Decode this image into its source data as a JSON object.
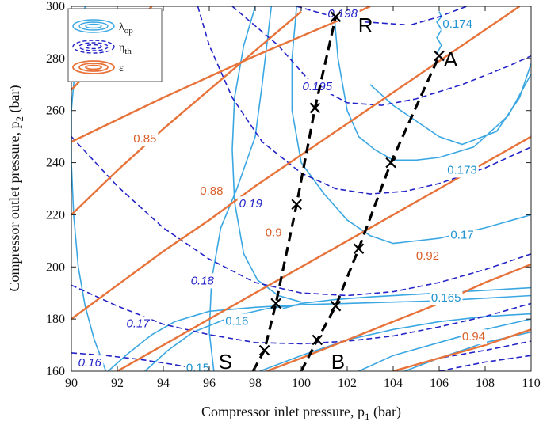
{
  "chart_data": {
    "type": "line",
    "title": "",
    "xlabel": "Compressor inlet pressure, p",
    "xlabel_sub": "1",
    "xlabel_unit": " (bar)",
    "ylabel": "Compressor outlet pressure, p",
    "ylabel_sub": "2",
    "ylabel_unit": " (bar)",
    "xlim": [
      90,
      110
    ],
    "ylim": [
      160,
      300
    ],
    "xticks": [
      "90",
      "92",
      "94",
      "96",
      "98",
      "100",
      "102",
      "104",
      "106",
      "108",
      "110"
    ],
    "yticks": [
      "160",
      "180",
      "200",
      "220",
      "240",
      "260",
      "280",
      "300"
    ],
    "grid": false,
    "legend_position": "top-left",
    "colors": {
      "lambda": "#3aa7e2",
      "eta": "#2323c8",
      "eps": "#e8733a",
      "path": "#000000"
    },
    "legend": [
      {
        "key": "lambda",
        "base": "λ",
        "sub": "op"
      },
      {
        "key": "eta",
        "base": "η",
        "sub": "th"
      },
      {
        "key": "eps",
        "base": "ε",
        "sub": ""
      }
    ],
    "series": [
      {
        "group": "lambda",
        "label": "0.15",
        "label_at": [
          95.5,
          161
        ],
        "points": [
          [
            91.6,
            160
          ],
          [
            92.5,
            167
          ],
          [
            93.5,
            174
          ],
          [
            94.5,
            179
          ],
          [
            96,
            183
          ],
          [
            98,
            184.5
          ],
          [
            100,
            185.5
          ],
          [
            102,
            186
          ],
          [
            104,
            186.5
          ],
          [
            106,
            187
          ],
          [
            108,
            188
          ],
          [
            110,
            189
          ]
        ]
      },
      {
        "group": "lambda",
        "label": "0.16",
        "label_at": [
          97.2,
          179
        ],
        "points": [
          [
            93.2,
            160
          ],
          [
            94.2,
            168
          ],
          [
            95.3,
            175
          ],
          [
            97,
            181
          ],
          [
            98.5,
            184
          ],
          [
            100,
            185.5
          ]
        ]
      },
      {
        "group": "lambda",
        "label": "0.165",
        "label_at": [
          106.3,
          188
        ],
        "points": [
          [
            99.2,
            184
          ],
          [
            100,
            186
          ],
          [
            101.5,
            187.5
          ],
          [
            103,
            188.5
          ],
          [
            105,
            189.5
          ],
          [
            107,
            190.5
          ],
          [
            110,
            192
          ]
        ]
      },
      {
        "group": "lambda",
        "label": "0.17",
        "label_at": [
          107,
          212
        ],
        "points": [
          [
            96.2,
            160
          ],
          [
            96,
            175
          ],
          [
            96.1,
            195
          ],
          [
            96.5,
            215
          ],
          [
            97.2,
            230
          ],
          [
            98,
            250
          ],
          [
            98.3,
            270
          ],
          [
            98.5,
            285
          ],
          [
            98.7,
            300
          ]
        ]
      },
      {
        "group": "lambda",
        "label": "",
        "label_at": null,
        "points": [
          [
            90.6,
            300
          ],
          [
            90.2,
            280
          ],
          [
            90,
            260
          ],
          [
            90,
            240
          ],
          [
            90.1,
            220
          ],
          [
            90.3,
            200
          ],
          [
            90.6,
            185
          ],
          [
            91,
            172
          ],
          [
            91.3,
            165
          ],
          [
            91.5,
            160
          ]
        ]
      },
      {
        "group": "lambda",
        "label": "",
        "label_at": null,
        "points": [
          [
            98,
            300
          ],
          [
            97.5,
            285
          ],
          [
            97.1,
            265
          ],
          [
            97,
            245
          ],
          [
            97.1,
            225
          ],
          [
            97.5,
            205
          ],
          [
            98.1,
            195
          ],
          [
            99,
            189
          ],
          [
            100,
            186.5
          ]
        ]
      },
      {
        "group": "lambda",
        "label": "",
        "label_at": null,
        "points": [
          [
            99.8,
            300
          ],
          [
            99.6,
            280
          ],
          [
            99.6,
            260
          ],
          [
            100,
            240
          ],
          [
            101,
            228
          ],
          [
            102,
            218
          ],
          [
            103,
            212
          ],
          [
            104,
            209
          ],
          [
            106,
            211
          ],
          [
            108,
            215
          ],
          [
            110,
            220
          ]
        ]
      },
      {
        "group": "lambda",
        "label": "0.173",
        "label_at": [
          107,
          237
        ],
        "points": [
          [
            101.4,
            300
          ],
          [
            101.6,
            280
          ],
          [
            102,
            260
          ],
          [
            102.5,
            250
          ],
          [
            103.2,
            245
          ],
          [
            104,
            241
          ],
          [
            105,
            241
          ],
          [
            106,
            242
          ],
          [
            107.5,
            246
          ],
          [
            109,
            258
          ],
          [
            110,
            274
          ]
        ]
      },
      {
        "group": "lambda",
        "label": "",
        "label_at": null,
        "points": [
          [
            103,
            270
          ],
          [
            104,
            262
          ],
          [
            105,
            256
          ],
          [
            106,
            250
          ],
          [
            107,
            247
          ],
          [
            108.5,
            252
          ],
          [
            109.5,
            265
          ],
          [
            110,
            278
          ]
        ]
      },
      {
        "group": "lambda",
        "label": "0.174",
        "label_at": [
          106.8,
          293
        ],
        "points": [
          [
            105.9,
            282
          ],
          [
            106.1,
            285
          ],
          [
            105.9,
            288
          ],
          [
            106.1,
            291
          ],
          [
            105.9,
            294
          ],
          [
            106.1,
            296
          ],
          [
            106,
            298
          ]
        ]
      },
      {
        "group": "lambda",
        "label": "",
        "label_at": null,
        "points": [
          [
            104.5,
            160
          ],
          [
            106,
            165
          ],
          [
            108,
            171
          ],
          [
            110,
            175
          ]
        ]
      },
      {
        "group": "lambda",
        "label": "",
        "label_at": null,
        "points": [
          [
            102.5,
            160
          ],
          [
            104,
            166
          ],
          [
            106,
            171
          ],
          [
            108,
            176
          ],
          [
            110,
            180
          ]
        ]
      },
      {
        "group": "lambda",
        "label": "",
        "label_at": null,
        "points": [
          [
            98.2,
            160
          ],
          [
            100,
            166
          ],
          [
            102,
            172
          ],
          [
            104,
            176
          ],
          [
            106,
            179
          ],
          [
            108,
            181
          ],
          [
            110,
            182
          ]
        ]
      },
      {
        "group": "eta",
        "label": "0.16",
        "label_at": [
          90.8,
          163
        ],
        "points": [
          [
            90,
            167
          ],
          [
            91.5,
            166
          ],
          [
            93,
            164.5
          ],
          [
            94.5,
            162.5
          ],
          [
            96,
            160
          ]
        ]
      },
      {
        "group": "eta",
        "label": "0.17",
        "label_at": [
          92.9,
          178
        ],
        "points": [
          [
            90,
            193
          ],
          [
            92,
            185
          ],
          [
            94,
            178
          ],
          [
            96,
            174
          ],
          [
            98,
            171
          ],
          [
            100,
            170.5
          ],
          [
            102,
            171.5
          ],
          [
            104,
            173.5
          ],
          [
            106,
            177
          ],
          [
            108,
            181
          ],
          [
            110,
            186
          ]
        ]
      },
      {
        "group": "eta",
        "label": "0.18",
        "label_at": [
          95.7,
          194.5
        ],
        "points": [
          [
            90,
            250
          ],
          [
            92,
            231
          ],
          [
            94,
            215
          ],
          [
            96,
            203
          ],
          [
            98,
            194
          ],
          [
            100,
            190
          ],
          [
            102,
            189
          ],
          [
            104,
            190.5
          ],
          [
            106,
            194
          ],
          [
            108,
            199
          ],
          [
            110,
            205
          ]
        ]
      },
      {
        "group": "eta",
        "label": "0.19",
        "label_at": [
          97.8,
          224
        ],
        "points": [
          [
            95.5,
            300
          ],
          [
            96,
            285
          ],
          [
            97,
            265
          ],
          [
            98.3,
            248
          ],
          [
            100,
            236
          ],
          [
            101.5,
            230
          ],
          [
            103,
            228
          ],
          [
            104.5,
            229
          ],
          [
            106,
            232
          ],
          [
            108,
            238
          ],
          [
            110,
            246
          ]
        ]
      },
      {
        "group": "eta",
        "label": "0.195",
        "label_at": [
          100.7,
          269
        ],
        "points": [
          [
            97,
            300
          ],
          [
            99,
            285
          ],
          [
            100.5,
            270
          ],
          [
            102,
            263
          ],
          [
            103.5,
            262
          ],
          [
            105,
            264.5
          ],
          [
            107,
            270
          ],
          [
            109,
            277
          ],
          [
            110,
            281
          ]
        ]
      },
      {
        "group": "eta",
        "label": "0.198",
        "label_at": [
          101.8,
          297
        ],
        "points": [
          [
            99.8,
            300
          ],
          [
            101,
            297
          ],
          [
            102.8,
            294
          ],
          [
            104.5,
            293
          ]
        ]
      },
      {
        "group": "eta",
        "label": "",
        "label_at": null,
        "points": [
          [
            104.8,
            293
          ],
          [
            106,
            296
          ],
          [
            107.2,
            300
          ]
        ]
      },
      {
        "group": "eta",
        "label": "",
        "label_at": null,
        "points": [
          [
            104,
            160
          ],
          [
            106,
            165
          ],
          [
            108,
            168
          ],
          [
            110,
            171.5
          ]
        ]
      },
      {
        "group": "eta",
        "label": "",
        "label_at": null,
        "points": [
          [
            106,
            160
          ],
          [
            108,
            163.5
          ],
          [
            110,
            166
          ]
        ]
      },
      {
        "group": "eps",
        "label": "0.85",
        "label_at": [
          93.2,
          249
        ],
        "points": [
          [
            90,
            268
          ],
          [
            92,
            286
          ],
          [
            93.5,
            300
          ]
        ]
      },
      {
        "group": "eps",
        "label": "0.88",
        "label_at": [
          96.1,
          229
        ],
        "points": [
          [
            90,
            220
          ],
          [
            92,
            237
          ],
          [
            94,
            253
          ],
          [
            96,
            268
          ],
          [
            98,
            283
          ],
          [
            100,
            298
          ]
        ]
      },
      {
        "group": "eps",
        "label": "0.9",
        "label_at": [
          98.8,
          213
        ],
        "points": [
          [
            90,
            180
          ],
          [
            92,
            193
          ],
          [
            94,
            206
          ],
          [
            96,
            218
          ],
          [
            98,
            231
          ],
          [
            100,
            243
          ],
          [
            102,
            255
          ],
          [
            104,
            267
          ],
          [
            106,
            279
          ],
          [
            108,
            291
          ],
          [
            109.5,
            300
          ]
        ]
      },
      {
        "group": "eps",
        "label": "0.92",
        "label_at": [
          105.5,
          204
        ],
        "points": [
          [
            92,
            160
          ],
          [
            94,
            170
          ],
          [
            96,
            180
          ],
          [
            98,
            190
          ],
          [
            100,
            200
          ],
          [
            102,
            210
          ],
          [
            104,
            220
          ],
          [
            106,
            230
          ],
          [
            108,
            240
          ],
          [
            110,
            250
          ]
        ]
      },
      {
        "group": "eps",
        "label": "0.94",
        "label_at": [
          107.5,
          173
        ],
        "points": [
          [
            98.5,
            160
          ],
          [
            100,
            165
          ],
          [
            102,
            172
          ],
          [
            104,
            179
          ],
          [
            106,
            186
          ],
          [
            108,
            194
          ],
          [
            110,
            201
          ]
        ]
      },
      {
        "group": "eps",
        "label": "",
        "label_at": null,
        "points": [
          [
            104,
            160
          ],
          [
            106,
            165
          ],
          [
            108,
            170
          ],
          [
            110,
            176
          ]
        ]
      },
      {
        "group": "eps",
        "label": "",
        "label_at": null,
        "points": [
          [
            90,
            248
          ],
          [
            94,
            265
          ],
          [
            98,
            281
          ],
          [
            102,
            296
          ],
          [
            103,
            300
          ]
        ]
      },
      {
        "group": "path",
        "label": "",
        "label_at": null,
        "points": [
          [
            97.9,
            160
          ],
          [
            98.4,
            168
          ],
          [
            98.9,
            186
          ],
          [
            99.8,
            224
          ],
          [
            100.6,
            261
          ],
          [
            101.5,
            296
          ]
        ]
      },
      {
        "group": "path",
        "label": "",
        "label_at": null,
        "points": [
          [
            100.0,
            160
          ],
          [
            100.7,
            172
          ],
          [
            101.5,
            185
          ],
          [
            102.5,
            207
          ],
          [
            103.9,
            240
          ],
          [
            106.0,
            281
          ]
        ]
      }
    ],
    "markers": [
      [
        98.4,
        168
      ],
      [
        98.9,
        186
      ],
      [
        99.8,
        224
      ],
      [
        100.6,
        261
      ],
      [
        101.5,
        296
      ],
      [
        100.7,
        172
      ],
      [
        101.5,
        185
      ],
      [
        102.5,
        207
      ],
      [
        103.9,
        240
      ],
      [
        106.0,
        281
      ]
    ],
    "point_labels": [
      {
        "text": "R",
        "at": [
          102.8,
          292
        ]
      },
      {
        "text": "A",
        "at": [
          106.5,
          279
        ]
      },
      {
        "text": "S",
        "at": [
          96.7,
          163
        ]
      },
      {
        "text": "B",
        "at": [
          101.6,
          163
        ]
      }
    ]
  }
}
